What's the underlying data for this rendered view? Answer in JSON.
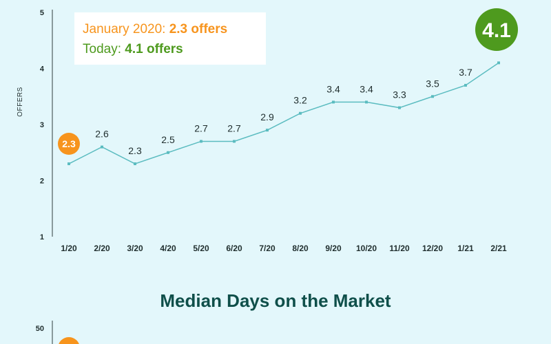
{
  "chart_data": [
    {
      "type": "line",
      "ylabel": "OFFERS",
      "ylim": [
        1,
        5
      ],
      "yticks": [
        1,
        2,
        3,
        4,
        5
      ],
      "categories": [
        "1/20",
        "2/20",
        "3/20",
        "4/20",
        "5/20",
        "6/20",
        "7/20",
        "8/20",
        "9/20",
        "10/20",
        "11/20",
        "12/20",
        "1/21",
        "2/21"
      ],
      "values": [
        2.3,
        2.6,
        2.3,
        2.5,
        2.7,
        2.7,
        2.9,
        3.2,
        3.4,
        3.4,
        3.3,
        3.5,
        3.7,
        4.1
      ],
      "data_labels": [
        "2.3",
        "2.6",
        "2.3",
        "2.5",
        "2.7",
        "2.7",
        "2.9",
        "3.2",
        "3.4",
        "3.4",
        "3.3",
        "3.5",
        "3.7",
        "4.1"
      ],
      "line_color": "#5bbcc0",
      "first_badge": {
        "text": "2.3",
        "color": "#f7941d"
      },
      "last_badge": {
        "text": "4.1",
        "color": "#4e9a1e"
      },
      "annotation": {
        "line1_prefix": "January 2020: ",
        "line1_value": "2.3 offers",
        "line2_prefix": "Today: ",
        "line2_value": "4.1 offers",
        "color1": "#f7941d",
        "color2": "#4e9a1e"
      }
    },
    {
      "type": "line",
      "title": "Median Days on the Market",
      "yticks": [
        50
      ],
      "badge_color": "#f7941d"
    }
  ]
}
